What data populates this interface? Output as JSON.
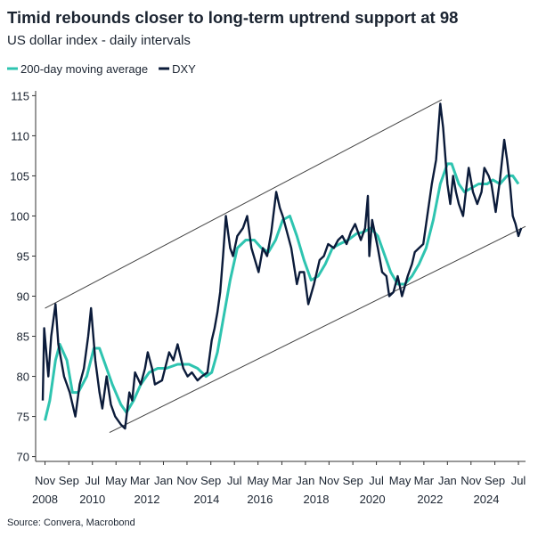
{
  "chart_data": {
    "type": "line",
    "title": "Timid rebounds closer to long-term uptrend support at 98",
    "subtitle": "US dollar index - daily intervals",
    "source": "Source: Convera, Macrobond",
    "xlim": [
      2008.5,
      2025.75
    ],
    "ylim": [
      69.4,
      115.6
    ],
    "yticks": [
      70,
      75,
      80,
      85,
      90,
      95,
      100,
      105,
      110,
      115
    ],
    "xticks": [
      {
        "value": 2008.83,
        "label": "Nov"
      },
      {
        "value": 2009.67,
        "label": "Sep"
      },
      {
        "value": 2010.5,
        "label": "Jul"
      },
      {
        "value": 2011.33,
        "label": "May"
      },
      {
        "value": 2012.17,
        "label": "Mar"
      },
      {
        "value": 2013.0,
        "label": "Jan"
      },
      {
        "value": 2013.83,
        "label": "Nov"
      },
      {
        "value": 2014.67,
        "label": "Sep"
      },
      {
        "value": 2015.5,
        "label": "Jul"
      },
      {
        "value": 2016.33,
        "label": "May"
      },
      {
        "value": 2017.17,
        "label": "Mar"
      },
      {
        "value": 2018.0,
        "label": "Jan"
      },
      {
        "value": 2018.83,
        "label": "Nov"
      },
      {
        "value": 2019.67,
        "label": "Sep"
      },
      {
        "value": 2020.5,
        "label": "Jul"
      },
      {
        "value": 2021.33,
        "label": "May"
      },
      {
        "value": 2022.17,
        "label": "Mar"
      },
      {
        "value": 2023.0,
        "label": "Jan"
      },
      {
        "value": 2023.83,
        "label": "Nov"
      },
      {
        "value": 2024.67,
        "label": "Sep"
      },
      {
        "value": 2025.5,
        "label": "Jul"
      }
    ],
    "year_ticks": [
      {
        "value": 2008.83,
        "label": "2008"
      },
      {
        "value": 2010.5,
        "label": "2010"
      },
      {
        "value": 2012.42,
        "label": "2012"
      },
      {
        "value": 2014.52,
        "label": "2014"
      },
      {
        "value": 2016.4,
        "label": "2016"
      },
      {
        "value": 2018.38,
        "label": "2018"
      },
      {
        "value": 2020.36,
        "label": "2020"
      },
      {
        "value": 2022.39,
        "label": "2022"
      },
      {
        "value": 2024.37,
        "label": "2024"
      }
    ],
    "series": [
      {
        "name": "200-day moving average",
        "color": "#2ec4b0",
        "width": 3,
        "x": [
          2008.83,
          2009.0,
          2009.2,
          2009.35,
          2009.6,
          2009.8,
          2010.0,
          2010.3,
          2010.55,
          2010.75,
          2010.95,
          2011.2,
          2011.5,
          2011.7,
          2011.95,
          2012.2,
          2012.5,
          2012.8,
          2013.1,
          2013.5,
          2013.9,
          2014.2,
          2014.5,
          2014.7,
          2014.9,
          2015.1,
          2015.35,
          2015.6,
          2015.9,
          2016.2,
          2016.45,
          2016.7,
          2016.95,
          2017.2,
          2017.45,
          2017.7,
          2017.95,
          2018.2,
          2018.45,
          2018.7,
          2018.95,
          2019.2,
          2019.5,
          2019.8,
          2020.05,
          2020.3,
          2020.55,
          2020.8,
          2021.0,
          2021.25,
          2021.5,
          2021.75,
          2022.0,
          2022.25,
          2022.5,
          2022.75,
          2023.0,
          2023.15,
          2023.4,
          2023.6,
          2023.85,
          2024.1,
          2024.4,
          2024.6,
          2024.85,
          2025.1,
          2025.3,
          2025.5
        ],
        "values": [
          74.5,
          77,
          82,
          84,
          82,
          78,
          78,
          80,
          83.5,
          83.5,
          81.5,
          79,
          76.5,
          75.5,
          77,
          79,
          80.5,
          81,
          81,
          81.5,
          81.5,
          81,
          80,
          80.5,
          83,
          87,
          92,
          96,
          97,
          97,
          96,
          95.5,
          97,
          99.5,
          100,
          97.5,
          94.5,
          92,
          92.5,
          94,
          96,
          96.5,
          97,
          97.8,
          98,
          98.5,
          97.5,
          95,
          93,
          91.5,
          91.5,
          92.5,
          94,
          96,
          99.5,
          104,
          106.5,
          106.5,
          104,
          103,
          103.5,
          104,
          104,
          104.5,
          104,
          105,
          105,
          104
        ]
      },
      {
        "name": "DXY",
        "color": "#0b1b3a",
        "width": 2.4,
        "x": [
          2008.75,
          2008.8,
          2008.95,
          2009.05,
          2009.2,
          2009.3,
          2009.5,
          2009.7,
          2009.9,
          2010.05,
          2010.2,
          2010.35,
          2010.45,
          2010.6,
          2010.75,
          2010.85,
          2011.0,
          2011.15,
          2011.3,
          2011.5,
          2011.65,
          2011.8,
          2011.9,
          2012.0,
          2012.2,
          2012.35,
          2012.45,
          2012.6,
          2012.7,
          2012.95,
          2013.2,
          2013.35,
          2013.5,
          2013.7,
          2013.85,
          2014.0,
          2014.2,
          2014.35,
          2014.55,
          2014.7,
          2014.8,
          2014.9,
          2015.0,
          2015.1,
          2015.2,
          2015.35,
          2015.45,
          2015.6,
          2015.8,
          2015.95,
          2016.1,
          2016.35,
          2016.5,
          2016.65,
          2016.8,
          2016.97,
          2017.1,
          2017.2,
          2017.35,
          2017.5,
          2017.7,
          2017.8,
          2017.95,
          2018.1,
          2018.3,
          2018.5,
          2018.65,
          2018.8,
          2019.0,
          2019.15,
          2019.3,
          2019.45,
          2019.6,
          2019.75,
          2019.95,
          2020.1,
          2020.2,
          2020.25,
          2020.35,
          2020.55,
          2020.7,
          2020.85,
          2020.95,
          2021.1,
          2021.25,
          2021.4,
          2021.6,
          2021.75,
          2021.85,
          2022.0,
          2022.15,
          2022.25,
          2022.45,
          2022.6,
          2022.75,
          2022.85,
          2023.0,
          2023.1,
          2023.2,
          2023.3,
          2023.4,
          2023.55,
          2023.65,
          2023.75,
          2023.9,
          2024.05,
          2024.2,
          2024.3,
          2024.45,
          2024.55,
          2024.7,
          2024.85,
          2025.0,
          2025.1,
          2025.2,
          2025.3,
          2025.4,
          2025.5,
          2025.6
        ],
        "values": [
          77,
          86,
          80,
          85,
          89,
          84,
          80,
          78,
          75,
          79,
          81,
          85,
          88.5,
          82,
          78,
          76,
          80,
          76.5,
          75,
          74,
          73.5,
          78,
          77,
          80.5,
          79,
          81,
          83,
          81,
          79,
          79.5,
          83,
          82,
          84,
          81,
          80,
          80.5,
          79.5,
          80,
          80.5,
          84.5,
          86,
          88,
          90.5,
          95,
          100,
          96,
          95,
          97.5,
          98.5,
          100,
          96,
          93,
          96,
          95,
          98,
          103,
          101,
          100,
          98,
          96,
          91.5,
          93,
          93,
          89,
          91.5,
          94.5,
          95,
          96.5,
          96,
          97,
          97.5,
          96.5,
          98,
          99,
          97,
          98.5,
          102.5,
          95,
          99.5,
          96,
          93,
          92.5,
          90,
          90.5,
          92.5,
          90,
          92.5,
          94,
          95.5,
          96,
          96.5,
          99,
          104,
          107,
          114,
          111,
          104,
          101.5,
          105,
          103,
          101.5,
          100,
          103,
          106,
          103,
          101.5,
          103,
          106,
          105,
          104,
          100.5,
          104.5,
          109.5,
          107,
          104,
          100,
          99,
          97.5,
          98.5
        ]
      }
    ],
    "channel": [
      {
        "x": [
          2008.83,
          2022.8
        ],
        "values": [
          88.5,
          114.5
        ]
      },
      {
        "x": [
          2011.1,
          2025.75
        ],
        "values": [
          73,
          98.7
        ]
      }
    ]
  }
}
